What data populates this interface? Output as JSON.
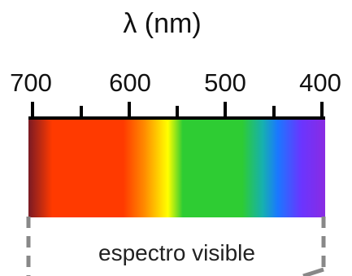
{
  "axis": {
    "title": "λ (nm)",
    "unit": "nm",
    "range": [
      700,
      400
    ],
    "major_ticks": [
      700,
      600,
      500,
      400
    ],
    "minor_ticks": [
      650,
      550,
      450
    ],
    "tick_labels": [
      "700",
      "600",
      "500",
      "400"
    ]
  },
  "spectrum": {
    "caption": "espectro visible",
    "colors": {
      "deep_red": "#7a1a24",
      "red": "#ff3a00",
      "orange": "#ff8a00",
      "yellow": "#ffff00",
      "green": "#2ecc33",
      "cyan": "#16b0b0",
      "blue": "#1a78ff",
      "violet": "#8a2be2"
    },
    "bracket_color": "#888888"
  }
}
